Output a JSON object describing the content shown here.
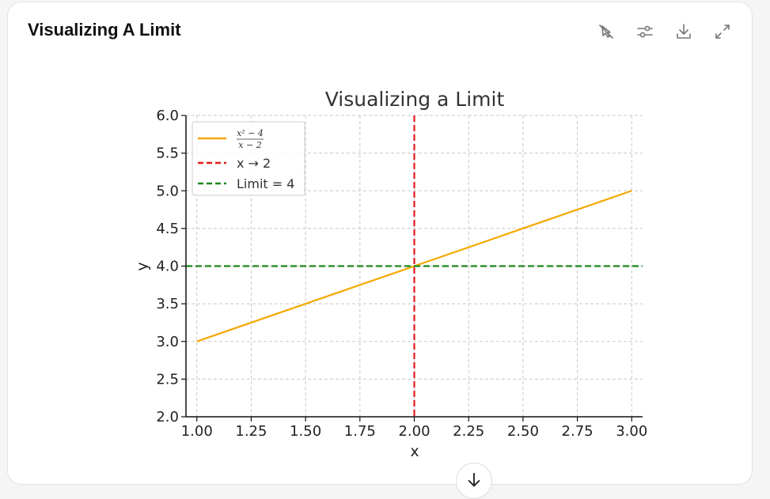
{
  "card": {
    "title": "Visualizing A Limit",
    "toolbar": [
      {
        "name": "hide-interactivity-button",
        "icon": "pointer-off-icon"
      },
      {
        "name": "chart-settings-button",
        "icon": "sliders-icon"
      },
      {
        "name": "download-button",
        "icon": "download-icon"
      },
      {
        "name": "expand-button",
        "icon": "expand-icon"
      }
    ]
  },
  "scroll_button": {
    "icon": "arrow-down-icon"
  },
  "chart_data": {
    "type": "line",
    "title": "Visualizing a Limit",
    "xlabel": "x",
    "ylabel": "y",
    "xlim": [
      0.95,
      3.05
    ],
    "ylim": [
      2.0,
      6.0
    ],
    "xticks": [
      "1.00",
      "1.25",
      "1.50",
      "1.75",
      "2.00",
      "2.25",
      "2.50",
      "2.75",
      "3.00"
    ],
    "yticks": [
      "2.0",
      "2.5",
      "3.0",
      "3.5",
      "4.0",
      "4.5",
      "5.0",
      "5.5",
      "6.0"
    ],
    "grid": true,
    "legend_position": "top-left",
    "series": [
      {
        "name": "(x² − 4)/(x − 2)",
        "legend_num": "x² − 4",
        "legend_den": "x − 2",
        "kind": "line",
        "color": "#f5a800",
        "x": [
          1.0,
          3.0
        ],
        "y": [
          3.0,
          5.0
        ]
      },
      {
        "name": "x → 2",
        "kind": "vline",
        "color": "#e41a1c",
        "value": 2.0
      },
      {
        "name": "Limit = 4",
        "kind": "hline",
        "color": "#1a8a1a",
        "value": 4.0
      }
    ]
  }
}
